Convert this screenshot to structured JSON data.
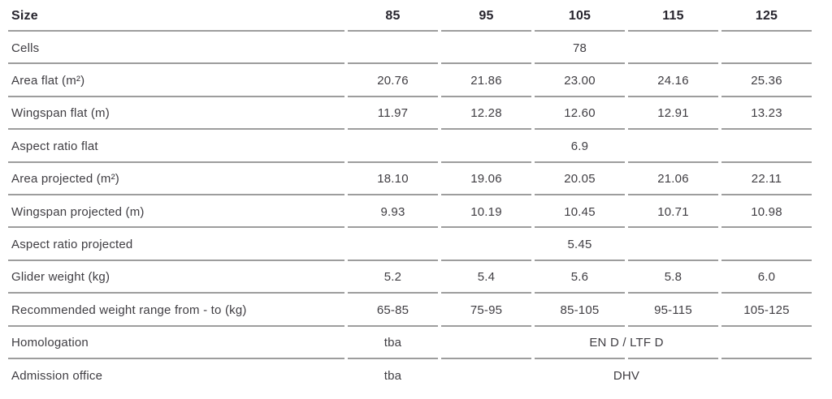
{
  "table": {
    "header": {
      "label": "Size",
      "sizes": [
        "85",
        "95",
        "105",
        "115",
        "125"
      ]
    },
    "rows": [
      {
        "label": "Cells",
        "span_all": "78"
      },
      {
        "label": "Area flat (m²)",
        "values": [
          "20.76",
          "21.86",
          "23.00",
          "24.16",
          "25.36"
        ]
      },
      {
        "label": "Wingspan flat (m)",
        "values": [
          "11.97",
          "12.28",
          "12.60",
          "12.91",
          "13.23"
        ]
      },
      {
        "label": "Aspect ratio flat",
        "span_all": "6.9"
      },
      {
        "label": "Area projected (m²)",
        "values": [
          "18.10",
          "19.06",
          "20.05",
          "21.06",
          "22.11"
        ]
      },
      {
        "label": "Wingspan projected (m)",
        "values": [
          "9.93",
          "10.19",
          "10.45",
          "10.71",
          "10.98"
        ]
      },
      {
        "label": "Aspect ratio projected",
        "span_all": "5.45"
      },
      {
        "label": "Glider weight (kg)",
        "values": [
          "5.2",
          "5.4",
          "5.6",
          "5.8",
          "6.0"
        ]
      },
      {
        "label": "Recommended weight range from - to (kg)",
        "values": [
          "65-85",
          "75-95",
          "85-105",
          "95-115",
          "105-125"
        ]
      },
      {
        "label": "Homologation",
        "first": "tba",
        "span_rest": "EN D / LTF D"
      },
      {
        "label": "Admission office",
        "first": "tba",
        "span_rest": "DHV"
      }
    ]
  },
  "colors": {
    "rule_line": "#9d9d9d",
    "header_text": "#27252e",
    "body_text": "#3f3d42",
    "background": "#ffffff"
  }
}
